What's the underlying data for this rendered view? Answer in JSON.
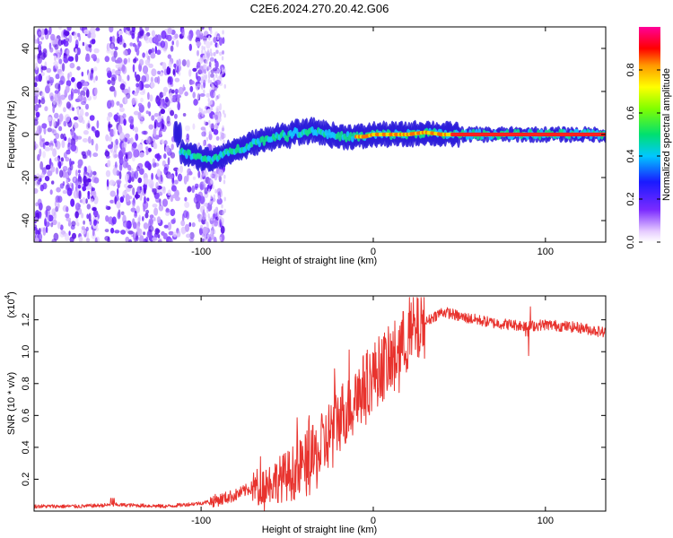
{
  "title": "C2E6.2024.270.20.42.G06",
  "chart_data": [
    {
      "type": "heatmap",
      "name": "spectrogram",
      "xlabel": "Height of straight line (km)",
      "ylabel": "Frequency (Hz)",
      "xlim": [
        -197,
        135
      ],
      "ylim": [
        -50,
        50
      ],
      "xticks": [
        -100,
        0,
        100
      ],
      "yticks": [
        -40,
        -20,
        0,
        20,
        40
      ],
      "ridge": {
        "x": [
          -112,
          -105,
          -100,
          -95,
          -90,
          -85,
          -80,
          -75,
          -70,
          -65,
          -60,
          -55,
          -50,
          -45,
          -40,
          -35,
          -30,
          -25,
          -20,
          -15,
          -10,
          -5,
          0,
          10,
          20,
          30,
          40,
          50,
          60,
          80,
          100,
          120,
          135
        ],
        "y": [
          -8,
          -10,
          -11,
          -12,
          -10,
          -9,
          -7,
          -6,
          -4,
          -3,
          -2,
          0,
          -1,
          1,
          1,
          2,
          1,
          0,
          -1,
          -1,
          -1,
          -1,
          0,
          0,
          0,
          1,
          0,
          0,
          0,
          0,
          0,
          0,
          0
        ]
      },
      "colorbar": {
        "label": "Normalized spectral amplitude",
        "range": [
          0,
          1
        ],
        "ticks": [
          "0.0",
          "0.2",
          "0.4",
          "0.6",
          "0.8"
        ]
      }
    },
    {
      "type": "line",
      "name": "snr",
      "xlabel": "Height of straight line (km)",
      "ylabel": "SNR (10 * v/v)",
      "exponent_label": "(x10",
      "exponent_sup": "4",
      "exponent_close": ")",
      "xlim": [
        -197,
        135
      ],
      "ylim": [
        0,
        1.35
      ],
      "xticks": [
        -100,
        0,
        100
      ],
      "yticks": [
        "0.2",
        "0.4",
        "0.6",
        "0.8",
        "1.0",
        "1.2"
      ],
      "series": [
        {
          "name": "SNR",
          "color": "#e8332e",
          "x": [
            -197,
            -170,
            -150,
            -120,
            -100,
            -90,
            -80,
            -70,
            -60,
            -55,
            -50,
            -45,
            -40,
            -35,
            -30,
            -25,
            -20,
            -15,
            -10,
            -5,
            0,
            5,
            10,
            15,
            20,
            25,
            30,
            35,
            40,
            45,
            50,
            60,
            70,
            80,
            90,
            100,
            110,
            120,
            135
          ],
          "y": [
            0.03,
            0.03,
            0.04,
            0.03,
            0.05,
            0.07,
            0.1,
            0.15,
            0.18,
            0.2,
            0.22,
            0.25,
            0.28,
            0.32,
            0.38,
            0.5,
            0.58,
            0.65,
            0.72,
            0.78,
            0.85,
            0.9,
            0.95,
            1.02,
            1.08,
            1.12,
            1.18,
            1.22,
            1.25,
            1.24,
            1.22,
            1.2,
            1.18,
            1.17,
            1.16,
            1.17,
            1.16,
            1.15,
            1.12
          ]
        }
      ]
    }
  ]
}
